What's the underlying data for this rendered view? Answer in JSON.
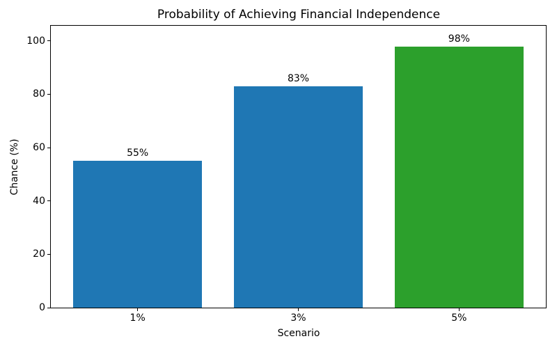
{
  "figure": {
    "background": "#ffffff"
  },
  "chart_data": {
    "type": "bar",
    "title": "Probability of Achieving Financial Independence",
    "xlabel": "Scenario",
    "ylabel": "Chance (%)",
    "categories": [
      "1%",
      "3%",
      "5%"
    ],
    "values": [
      55,
      83,
      98
    ],
    "bar_labels": [
      "55%",
      "83%",
      "98%"
    ],
    "bar_colors": [
      "#1f77b4",
      "#1f77b4",
      "#2ca02c"
    ],
    "yticks": [
      0,
      20,
      40,
      60,
      80,
      100
    ],
    "ylim": [
      0,
      105.7
    ],
    "xlim": [
      -0.54,
      2.54
    ],
    "bar_width": 0.8,
    "grid": false,
    "legend": false,
    "axis_color": "#000000",
    "text_color": "#000000"
  }
}
